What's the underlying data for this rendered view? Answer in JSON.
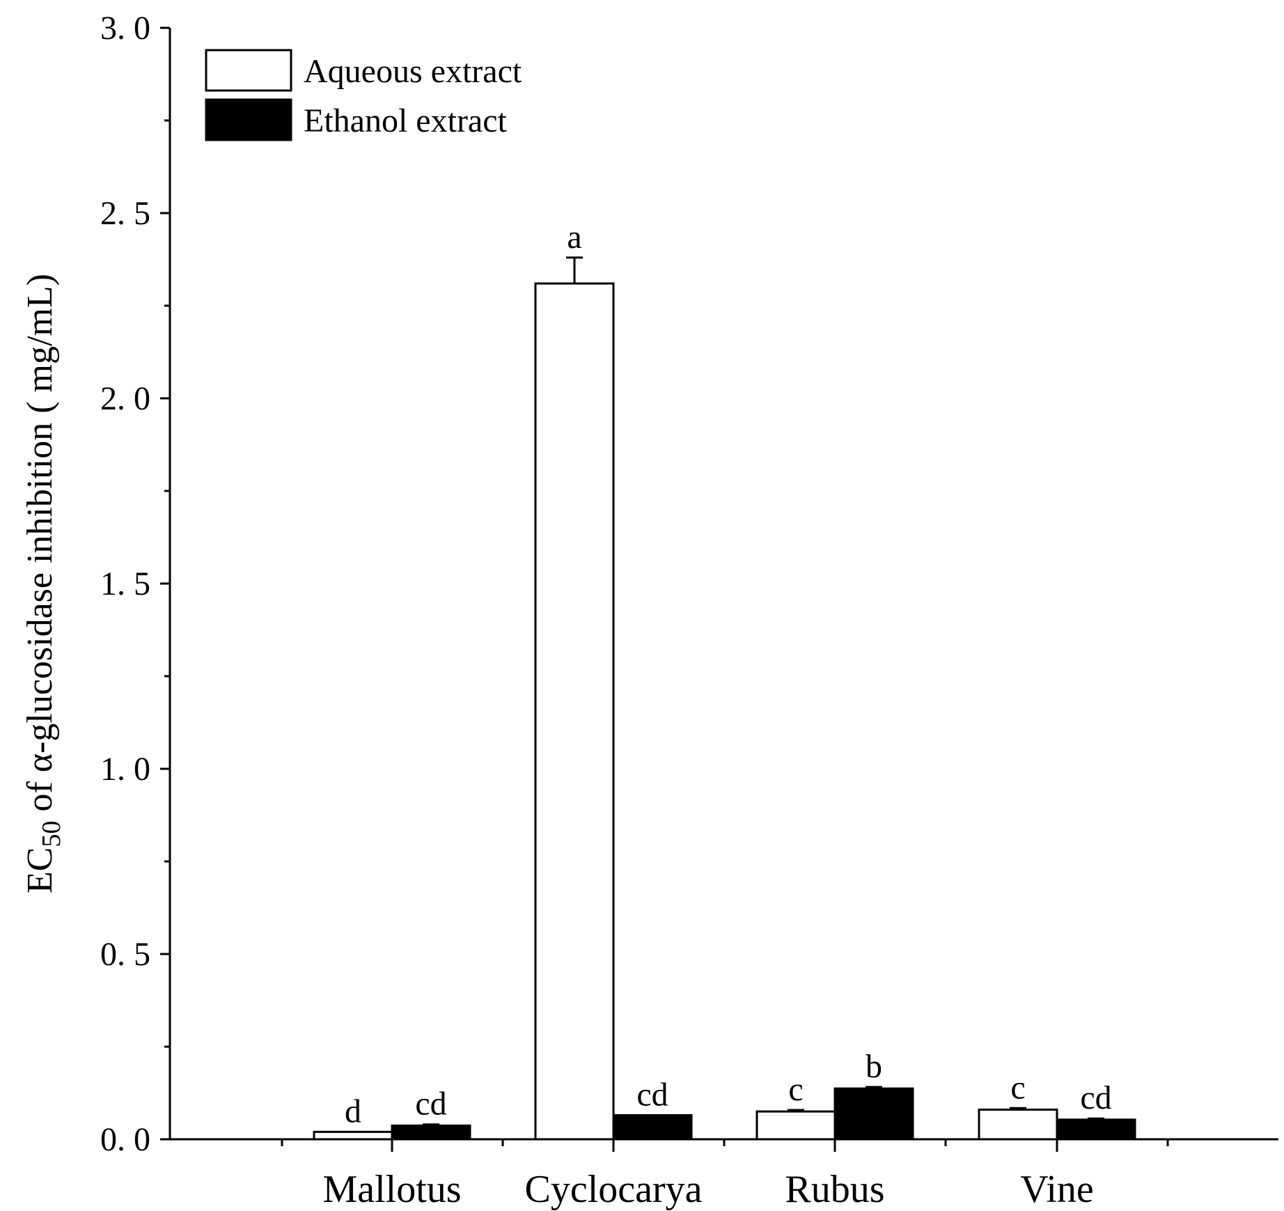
{
  "chart_data": {
    "type": "bar",
    "categories": [
      "Mallotus",
      "Cyclocarya",
      "Rubus",
      "Vine"
    ],
    "series": [
      {
        "name": "Aqueous extract",
        "fill": "#ffffff",
        "values": [
          0.02,
          2.31,
          0.075,
          0.08
        ],
        "errors": [
          0.0,
          0.07,
          0.004,
          0.004
        ],
        "significance": [
          "d",
          "a",
          "c",
          "c"
        ]
      },
      {
        "name": "Ethanol extract",
        "fill": "#000000",
        "values": [
          0.037,
          0.065,
          0.137,
          0.053
        ],
        "errors": [
          0.003,
          0.0,
          0.004,
          0.003
        ],
        "significance": [
          "cd",
          "cd",
          "b",
          "cd"
        ]
      }
    ],
    "ylabel": {
      "prefix": "EC",
      "subscript": "50",
      "suffix": " of α-glucosidase inhibition ( mg/mL)"
    },
    "xlabel": "",
    "ylim": [
      0,
      3.0
    ],
    "yticks": [
      "0. 0",
      "0. 5",
      "1. 0",
      "1. 5",
      "2. 0",
      "2. 5",
      "3. 0"
    ],
    "ytick_values": [
      0,
      0.5,
      1.0,
      1.5,
      2.0,
      2.5,
      3.0
    ],
    "grid": false,
    "legend_position": "top-left"
  }
}
